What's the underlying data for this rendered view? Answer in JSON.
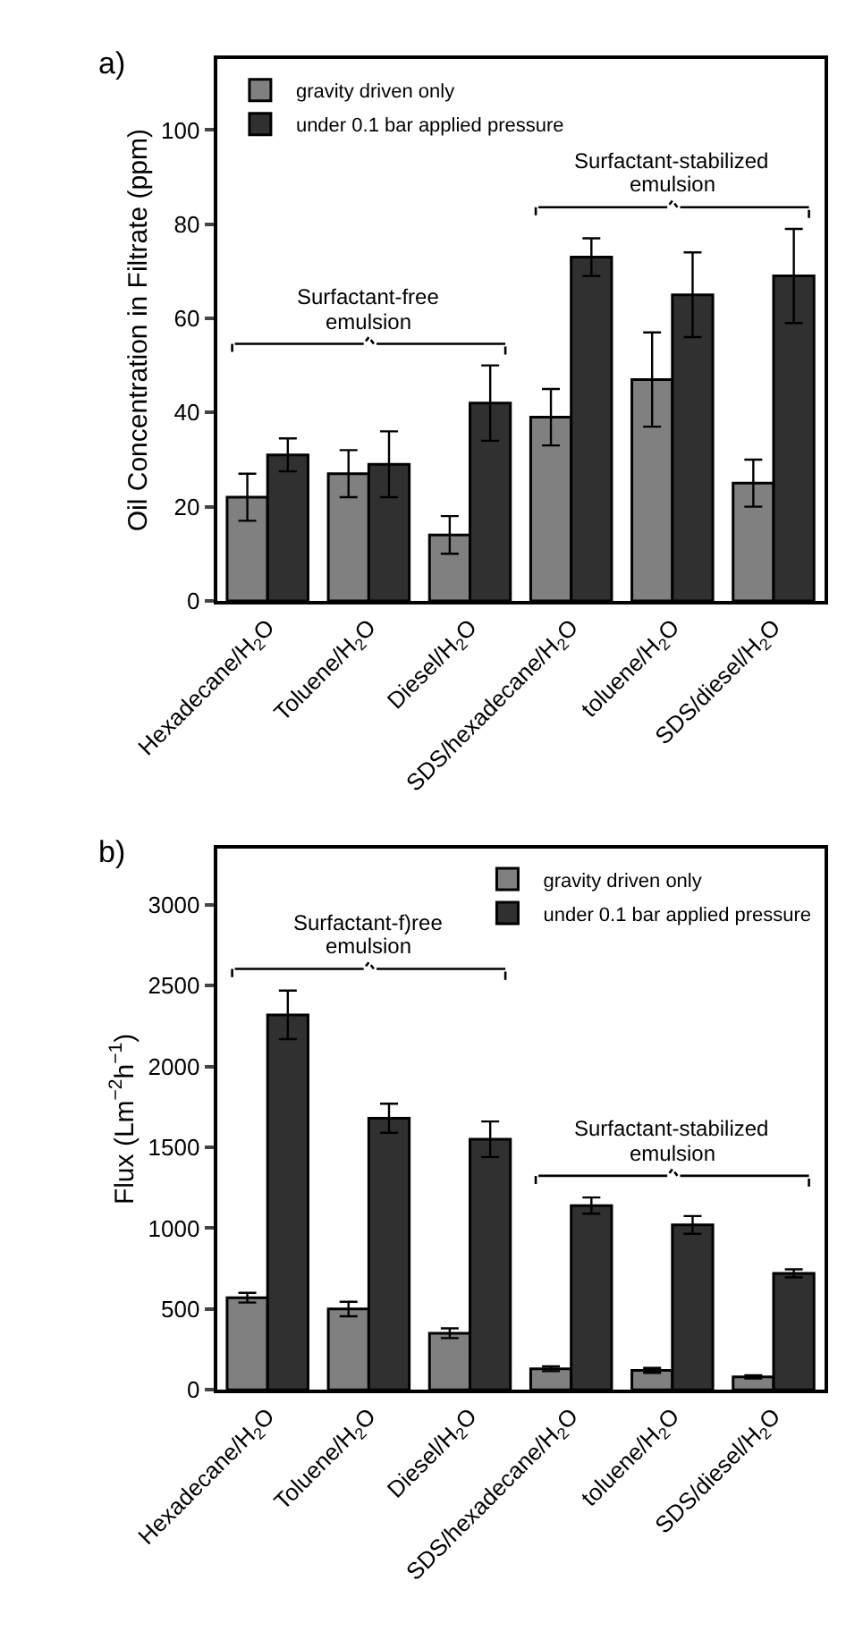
{
  "chart_data": [
    {
      "type": "bar",
      "title": "a)",
      "ylabel": "Oil Concentration in Filtrate (ppm)",
      "categories": [
        "Hexadecane/H$_{2}$O",
        "Toluene/H$_{2}$O",
        "Diesel/H$_{2}$O",
        "SDS/hexadecane/H$_{2}$O",
        "toluene/H$_{2}$O",
        "SDS/diesel/H$_{2}$O"
      ],
      "series": [
        {
          "name": "gravity driven only",
          "color": "#808080",
          "values": [
            22,
            27,
            14,
            39,
            47,
            25
          ],
          "errors": [
            5,
            5,
            4,
            6,
            10,
            5
          ]
        },
        {
          "name": "under 0.1 bar applied pressure",
          "color": "#303030",
          "values": [
            31,
            29,
            42,
            73,
            65,
            69
          ],
          "errors": [
            3.5,
            7,
            8,
            4,
            9,
            10
          ]
        }
      ],
      "ylim": [
        0,
        115
      ],
      "yticks": [
        0,
        20,
        40,
        60,
        80,
        100
      ],
      "legend": "top left",
      "annotations": [
        "Surfactant-free\nemulsion",
        "Surfactant-stabilized\nemulsion"
      ]
    },
    {
      "type": "bar",
      "title": "b)",
      "ylabel": "Flux (Lm$^{−2}$h$^{−1}$)",
      "categories": [
        "Hexadecane/H$_{2}$O",
        "Toluene/H$_{2}$O",
        "Diesel/H$_{2}$O",
        "SDS/hexadecane/H$_{2}$O",
        "toluene/H$_{2}$O",
        "SDS/diesel/H$_{2}$O"
      ],
      "series": [
        {
          "name": "gravity driven only",
          "color": "#808080",
          "values": [
            570,
            500,
            350,
            130,
            120,
            80
          ],
          "errors": [
            30,
            45,
            30,
            15,
            15,
            10
          ]
        },
        {
          "name": "under 0.1 bar applied pressure",
          "color": "#303030",
          "values": [
            2320,
            1680,
            1550,
            1140,
            1020,
            720
          ],
          "errors": [
            150,
            90,
            110,
            50,
            55,
            25
          ]
        }
      ],
      "ylim": [
        0,
        3350
      ],
      "yticks": [
        0,
        500,
        1000,
        1500,
        2000,
        2500,
        3000
      ],
      "legend": "top right",
      "annotations": [
        "Surfactant-f)ree\nemulsion",
        "Surfactant-stabilized\nemulsion"
      ]
    }
  ]
}
